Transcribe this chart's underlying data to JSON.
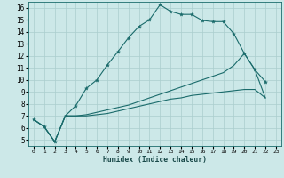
{
  "xlabel": "Humidex (Indice chaleur)",
  "xlim": [
    -0.5,
    23.5
  ],
  "ylim": [
    4.5,
    16.5
  ],
  "xticks": [
    0,
    1,
    2,
    3,
    4,
    5,
    6,
    7,
    8,
    9,
    10,
    11,
    12,
    13,
    14,
    15,
    16,
    17,
    18,
    19,
    20,
    21,
    22,
    23
  ],
  "yticks": [
    5,
    6,
    7,
    8,
    9,
    10,
    11,
    12,
    13,
    14,
    15,
    16
  ],
  "bg_color": "#cce8e8",
  "grid_color": "#aacece",
  "line_color": "#1a6b6b",
  "line1_x": [
    0,
    1,
    2,
    3,
    4,
    5,
    6,
    7,
    8,
    9,
    10,
    11,
    12,
    13,
    14,
    15,
    16,
    17,
    18,
    19,
    20,
    21,
    22
  ],
  "line1_y": [
    6.7,
    6.1,
    4.85,
    7.0,
    7.85,
    9.3,
    10.0,
    11.25,
    12.35,
    13.5,
    14.45,
    15.0,
    16.25,
    15.7,
    15.45,
    15.45,
    14.95,
    14.85,
    14.85,
    13.85,
    12.2,
    10.85,
    9.85
  ],
  "line2_x": [
    0,
    1,
    2,
    3,
    4,
    5,
    6,
    7,
    8,
    9,
    10,
    11,
    12,
    13,
    14,
    15,
    16,
    17,
    18,
    19,
    20,
    21,
    22
  ],
  "line2_y": [
    6.7,
    6.1,
    4.85,
    7.0,
    7.0,
    7.1,
    7.3,
    7.5,
    7.7,
    7.9,
    8.2,
    8.5,
    8.8,
    9.1,
    9.4,
    9.7,
    10.0,
    10.3,
    10.6,
    11.2,
    12.2,
    10.85,
    8.5
  ],
  "line3_x": [
    0,
    1,
    2,
    3,
    4,
    5,
    6,
    7,
    8,
    9,
    10,
    11,
    12,
    13,
    14,
    15,
    16,
    17,
    18,
    19,
    20,
    21,
    22
  ],
  "line3_y": [
    6.7,
    6.1,
    4.85,
    7.0,
    7.0,
    7.0,
    7.1,
    7.2,
    7.4,
    7.6,
    7.8,
    8.0,
    8.2,
    8.4,
    8.5,
    8.7,
    8.8,
    8.9,
    9.0,
    9.1,
    9.2,
    9.2,
    8.5
  ]
}
